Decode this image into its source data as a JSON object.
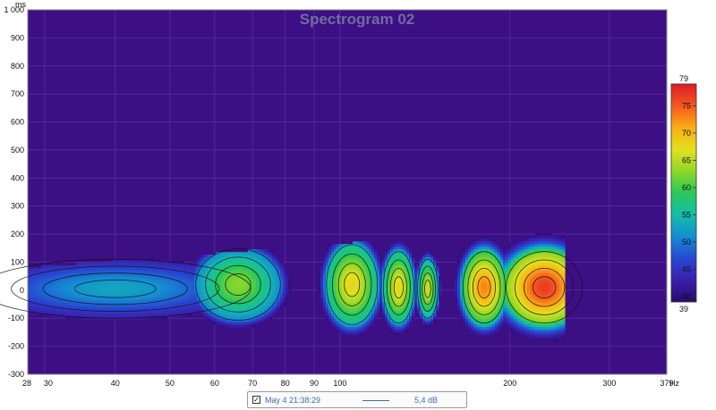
{
  "chart_data": {
    "type": "heatmap",
    "title": "Spectrogram 02",
    "xlabel": "",
    "ylabel": "",
    "x_unit_label": "Hz",
    "y_unit_label": "ms",
    "x_scale": "log",
    "xlim": [
      28,
      379
    ],
    "ylim": [
      -300,
      1000
    ],
    "x_ticks": [
      {
        "v": 28,
        "label": "28"
      },
      {
        "v": 30,
        "label": "30"
      },
      {
        "v": 40,
        "label": "40"
      },
      {
        "v": 50,
        "label": "50"
      },
      {
        "v": 60,
        "label": "60"
      },
      {
        "v": 70,
        "label": "70"
      },
      {
        "v": 80,
        "label": "80"
      },
      {
        "v": 90,
        "label": "90"
      },
      {
        "v": 100,
        "label": "100"
      },
      {
        "v": 200,
        "label": "200"
      },
      {
        "v": 300,
        "label": "300"
      },
      {
        "v": 379,
        "label": "379"
      }
    ],
    "y_ticks": [
      {
        "v": 1000,
        "label": "1 000"
      },
      {
        "v": 900,
        "label": "900"
      },
      {
        "v": 800,
        "label": "800"
      },
      {
        "v": 700,
        "label": "700"
      },
      {
        "v": 600,
        "label": "600"
      },
      {
        "v": 500,
        "label": "500"
      },
      {
        "v": 400,
        "label": "400"
      },
      {
        "v": 300,
        "label": "300"
      },
      {
        "v": 200,
        "label": "200"
      },
      {
        "v": 100,
        "label": "100"
      },
      {
        "v": 0,
        "label": "0"
      },
      {
        "v": -100,
        "label": "-100"
      },
      {
        "v": -200,
        "label": "-200"
      },
      {
        "v": -300,
        "label": "-300"
      }
    ],
    "grid": true,
    "colorbar": {
      "min": 39,
      "max": 79,
      "top_label": "79",
      "bottom_label": "39",
      "ticks": [
        {
          "v": 75,
          "label": "75"
        },
        {
          "v": 70,
          "label": "70"
        },
        {
          "v": 65,
          "label": "65"
        },
        {
          "v": 60,
          "label": "60"
        },
        {
          "v": 55,
          "label": "55"
        },
        {
          "v": 50,
          "label": "50"
        },
        {
          "v": 45,
          "label": "45"
        },
        {
          "v": 40,
          "label": "40"
        }
      ]
    },
    "blobs": [
      {
        "f": 40,
        "t": 5,
        "wf": 0.16,
        "wt": 70,
        "level": 53
      },
      {
        "f": 66,
        "t": 20,
        "wf": 0.05,
        "wt": 85,
        "level": 63
      },
      {
        "f": 105,
        "t": 20,
        "wf": 0.03,
        "wt": 95,
        "level": 68
      },
      {
        "f": 127,
        "t": 10,
        "wf": 0.018,
        "wt": 85,
        "level": 68
      },
      {
        "f": 143,
        "t": 5,
        "wf": 0.012,
        "wt": 70,
        "level": 66
      },
      {
        "f": 180,
        "t": 10,
        "wf": 0.025,
        "wt": 85,
        "level": 73
      },
      {
        "f": 230,
        "t": 10,
        "wf": 0.045,
        "wt": 85,
        "level": 77
      }
    ],
    "background_color": "#3d0f85",
    "grid_color": "#5a3aa8"
  },
  "legend": {
    "checked_symbol": "✓",
    "name": "May 4 21:38:29",
    "value": "5,4 dB"
  }
}
